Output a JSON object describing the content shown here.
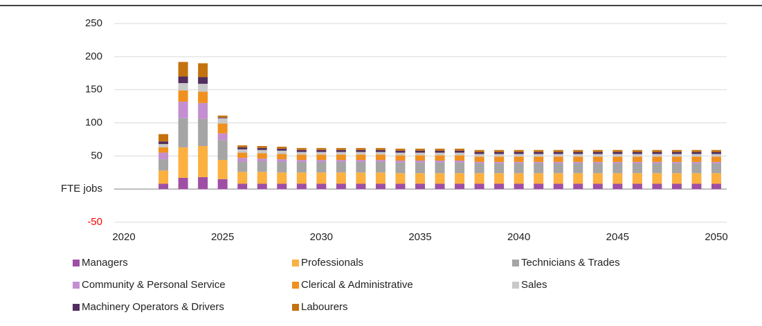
{
  "chart_data": {
    "type": "stacked_bar",
    "x": [
      2022,
      2023,
      2024,
      2025,
      2026,
      2027,
      2028,
      2029,
      2030,
      2031,
      2032,
      2033,
      2034,
      2035,
      2036,
      2037,
      2038,
      2039,
      2040,
      2041,
      2042,
      2043,
      2044,
      2045,
      2046,
      2047,
      2048,
      2049,
      2050
    ],
    "series": [
      {
        "name": "Managers",
        "color": "#9e4fa5",
        "values": [
          8,
          17,
          18,
          15,
          8,
          8,
          8,
          8,
          8,
          8,
          8,
          8,
          8,
          8,
          8,
          8,
          8,
          8,
          8,
          8,
          8,
          8,
          8,
          8,
          8,
          8,
          8,
          8,
          8
        ]
      },
      {
        "name": "Professionals",
        "color": "#fbb040",
        "values": [
          20,
          46,
          47,
          29,
          18,
          18,
          17,
          17,
          17,
          17,
          17,
          17,
          16,
          16,
          16,
          16,
          16,
          16,
          16,
          16,
          16,
          16,
          16,
          16,
          16,
          16,
          16,
          16,
          16
        ]
      },
      {
        "name": "Technicians & Trades",
        "color": "#a5a5a5",
        "values": [
          17,
          44,
          41,
          30,
          15,
          16,
          16,
          16,
          16,
          16,
          16,
          16,
          16,
          16,
          16,
          16,
          15,
          15,
          15,
          15,
          15,
          15,
          15,
          15,
          15,
          15,
          15,
          15,
          15
        ]
      },
      {
        "name": "Community & Personal Service",
        "color": "#c38fd0",
        "values": [
          10,
          25,
          24,
          10,
          6,
          4,
          4,
          3,
          3,
          3,
          3,
          3,
          3,
          3,
          3,
          3,
          2,
          2,
          2,
          2,
          2,
          2,
          2,
          2,
          2,
          2,
          2,
          2,
          2
        ]
      },
      {
        "name": "Clerical & Administrative",
        "color": "#f0901e",
        "values": [
          8,
          17,
          17,
          15,
          8,
          8,
          8,
          8,
          8,
          8,
          8,
          8,
          8,
          8,
          8,
          8,
          8,
          8,
          8,
          8,
          8,
          8,
          8,
          8,
          8,
          8,
          8,
          8,
          8
        ]
      },
      {
        "name": "Sales",
        "color": "#c9c9c9",
        "values": [
          5,
          11,
          12,
          8,
          5,
          5,
          5,
          4,
          4,
          4,
          4,
          4,
          4,
          4,
          4,
          4,
          4,
          4,
          4,
          4,
          4,
          4,
          4,
          4,
          4,
          4,
          4,
          4,
          4
        ]
      },
      {
        "name": "Machinery Operators & Drivers",
        "color": "#512e5f",
        "values": [
          4,
          10,
          10,
          1,
          3,
          3,
          3,
          3,
          3,
          3,
          3,
          3,
          3,
          3,
          3,
          3,
          3,
          3,
          3,
          3,
          3,
          3,
          3,
          3,
          3,
          3,
          3,
          3,
          3
        ]
      },
      {
        "name": "Labourers",
        "color": "#c4720f",
        "values": [
          11,
          22,
          21,
          3,
          3,
          3,
          3,
          3,
          3,
          3,
          3,
          3,
          3,
          3,
          3,
          3,
          3,
          3,
          3,
          3,
          3,
          3,
          3,
          3,
          3,
          3,
          3,
          3,
          3
        ]
      }
    ],
    "xlim": [
      2020,
      2050
    ],
    "xticks": [
      2020,
      2025,
      2030,
      2035,
      2040,
      2045,
      2050
    ],
    "ylim": [
      -50,
      250
    ],
    "yticks": [
      -50,
      {
        "value": 0,
        "label": "FTE jobs"
      },
      50,
      100,
      150,
      200,
      250
    ],
    "grid": true
  }
}
